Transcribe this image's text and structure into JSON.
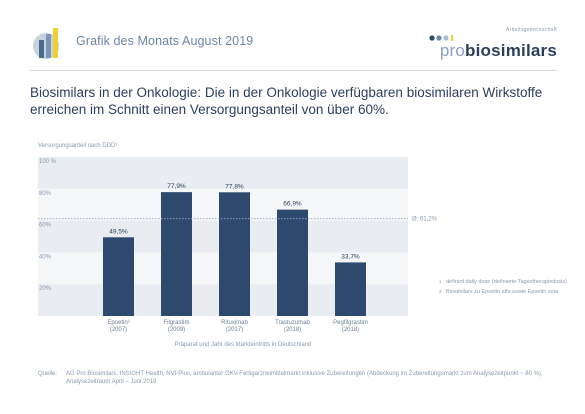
{
  "header": {
    "title": "Grafik des Monats August 2019",
    "brand_small": "Arbeitsgemeinschaft",
    "brand_pro": "pro",
    "brand_name": "biosimilars"
  },
  "headline": "Biosimilars in der Onkologie: Die in der Onkologie verfügbaren biosimilaren Wirkstoffe erreichen im Schnitt einen Versorgungsanteil von über 60%.",
  "chart_data": {
    "type": "bar",
    "ylabel": "Versorgungsanteil nach DDD¹",
    "xlabel": "Präparat und Jahr des Markteintritts in Deutschland",
    "ylim": [
      0,
      100
    ],
    "yticks": [
      20,
      40,
      60,
      80,
      100
    ],
    "ytick_labels": [
      "20%",
      "40%",
      "60%",
      "80%",
      "100 %"
    ],
    "grid": false,
    "categories": [
      [
        "Epoetin²",
        "(2007)"
      ],
      [
        "Filgrastim",
        "(2009)"
      ],
      [
        "Rituximab",
        "(2017)"
      ],
      [
        "Trastuzumab",
        "(2018)"
      ],
      [
        "Pegfilgrastim",
        "(2018)"
      ]
    ],
    "values": [
      49.5,
      77.9,
      77.8,
      66.9,
      33.7
    ],
    "value_labels": [
      "49,5%",
      "77,9%",
      "77,8%",
      "66,9%",
      "33,7%"
    ],
    "reference_line": {
      "value": 61.2,
      "label": "Ø: 61,2%"
    },
    "colors": {
      "bar": "#2d4a6e",
      "band_dark": "#e9ecf0",
      "band_light": "#f5f6f8",
      "avg_line": "#9aa7b6"
    }
  },
  "footnotes": [
    {
      "mark": "1",
      "text": "defined daily dose (definierte Tagestherapiedosis)"
    },
    {
      "mark": "2",
      "text": "Biosimilars zu Epoetin alfa sowie Epoetin zeta"
    }
  ],
  "source": {
    "label": "Quelle:",
    "text": "AG Pro Biosimilars, INSIGHT Health, NVI-Plus, ambulanter GKV-Fertigarzneimittelmarkt inklusive Zubereitungen (Abdeckung im Zubereitungsmarkt zum Analysezeitpunkt ~ 80 %), Analysezeitraum April – Juni 2019"
  }
}
